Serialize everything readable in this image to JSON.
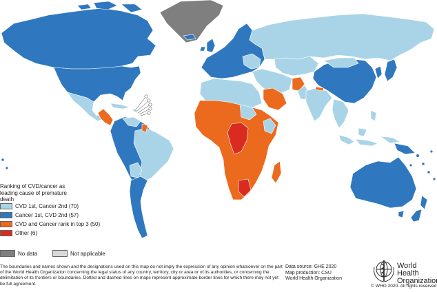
{
  "legend": {
    "title": "Ranking of CVD/cancer as leading cause of premature death",
    "items": [
      {
        "label": "CVD 1st, Cancer 2nd (70)",
        "color": "#a9d4e8"
      },
      {
        "label": "Cancer 1st, CVD 2nd (57)",
        "color": "#2f78bf"
      },
      {
        "label": "CVD and Cancer rank in top 3 (50)",
        "color": "#ec6a1e"
      },
      {
        "label": "Other (6)",
        "color": "#d92b20"
      }
    ],
    "no_data": {
      "label": "No data",
      "color": "#7f7f7f"
    },
    "not_applicable": {
      "label": "Not applicable",
      "color": "#d9d9d9"
    }
  },
  "disclaimer": "The boundaries and names shown and the designations used on this map do not imply the expression of any opinion whatsoever on the part of the World Health Organization concerning the legal status of any country, territory, city or area or of its authorities, or concerning the delimitation of its frontiers or boundaries. Dotted and dashed lines on maps represent approximate border lines for which there may not yet be full agreement.",
  "source": {
    "data_source": "Data source: GHE 2020",
    "map_production": "Map production: CSU",
    "organization": "World Health Organization"
  },
  "who": {
    "name_line1": "World Health",
    "name_line2": "Organization",
    "copyright": "© WHO 2020. All rights reserved"
  }
}
